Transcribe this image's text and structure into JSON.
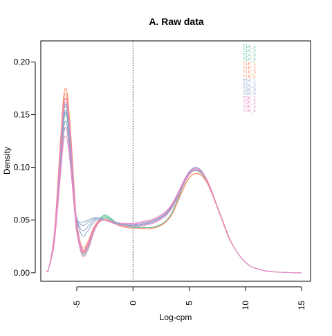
{
  "chart_data": {
    "type": "line",
    "title": "A. Raw data",
    "xlabel": "Log-cpm",
    "ylabel": "Density",
    "xlim": [
      -8.2,
      15.8
    ],
    "ylim": [
      -0.008,
      0.22
    ],
    "xticks": [
      {
        "value": -5,
        "label": "-5"
      },
      {
        "value": 0,
        "label": "0"
      },
      {
        "value": 5,
        "label": "5"
      },
      {
        "value": 10,
        "label": "10"
      },
      {
        "value": 15,
        "label": "15"
      }
    ],
    "yticks": [
      {
        "value": 0.0,
        "label": "0.00"
      },
      {
        "value": 0.05,
        "label": "0.05"
      },
      {
        "value": 0.1,
        "label": "0.10"
      },
      {
        "value": 0.15,
        "label": "0.15"
      },
      {
        "value": 0.2,
        "label": "0.20"
      }
    ],
    "vline": {
      "x": 0,
      "style": "dotted"
    },
    "grid": false,
    "legend_position": "top-right",
    "x": [
      -7.7,
      -7.5,
      -7.0,
      -6.5,
      -6.2,
      -6.0,
      -5.8,
      -5.5,
      -5.2,
      -5.0,
      -4.5,
      -4.0,
      -3.5,
      -3.0,
      -2.5,
      -2.0,
      -1.5,
      -1.0,
      -0.5,
      0.0,
      0.5,
      1.0,
      1.5,
      2.0,
      2.5,
      3.0,
      3.5,
      4.0,
      4.5,
      5.0,
      5.5,
      6.0,
      6.5,
      7.0,
      7.5,
      8.0,
      8.5,
      9.0,
      9.5,
      10.0,
      10.5,
      11.0,
      11.5,
      12.0,
      12.5,
      13.0,
      13.5,
      14.0,
      14.5,
      15.0
    ],
    "series": [
      {
        "name": "T1A_1",
        "color": "#66C2A5",
        "values": [
          0.002,
          0.004,
          0.03,
          0.09,
          0.128,
          0.138,
          0.13,
          0.1,
          0.062,
          0.042,
          0.02,
          0.026,
          0.04,
          0.05,
          0.053,
          0.05,
          0.047,
          0.046,
          0.045,
          0.044,
          0.043,
          0.043,
          0.043,
          0.044,
          0.046,
          0.05,
          0.058,
          0.07,
          0.083,
          0.093,
          0.097,
          0.095,
          0.088,
          0.076,
          0.062,
          0.048,
          0.034,
          0.024,
          0.016,
          0.01,
          0.006,
          0.004,
          0.0025,
          0.0015,
          0.001,
          0.0006,
          0.0004,
          0.0002,
          0.0001,
          0.0
        ]
      },
      {
        "name": "T1A_2",
        "color": "#66C2A5",
        "values": [
          0.002,
          0.004,
          0.032,
          0.098,
          0.14,
          0.15,
          0.142,
          0.108,
          0.066,
          0.044,
          0.018,
          0.022,
          0.038,
          0.05,
          0.055,
          0.052,
          0.048,
          0.046,
          0.045,
          0.044,
          0.043,
          0.043,
          0.043,
          0.044,
          0.046,
          0.05,
          0.058,
          0.07,
          0.083,
          0.093,
          0.097,
          0.095,
          0.088,
          0.076,
          0.062,
          0.048,
          0.034,
          0.024,
          0.016,
          0.01,
          0.006,
          0.004,
          0.0025,
          0.0015,
          0.001,
          0.0006,
          0.0004,
          0.0002,
          0.0001,
          0.0
        ]
      },
      {
        "name": "T1A_3",
        "color": "#66C2A5",
        "values": [
          0.002,
          0.004,
          0.034,
          0.104,
          0.148,
          0.158,
          0.15,
          0.114,
          0.07,
          0.046,
          0.02,
          0.024,
          0.04,
          0.051,
          0.054,
          0.051,
          0.047,
          0.045,
          0.044,
          0.043,
          0.043,
          0.043,
          0.043,
          0.044,
          0.046,
          0.05,
          0.058,
          0.07,
          0.083,
          0.093,
          0.097,
          0.095,
          0.088,
          0.076,
          0.062,
          0.048,
          0.034,
          0.024,
          0.016,
          0.01,
          0.006,
          0.004,
          0.0025,
          0.0015,
          0.001,
          0.0006,
          0.0004,
          0.0002,
          0.0001,
          0.0
        ]
      },
      {
        "name": "T1A_4",
        "color": "#66C2A5",
        "values": [
          0.002,
          0.004,
          0.031,
          0.094,
          0.134,
          0.144,
          0.136,
          0.104,
          0.064,
          0.043,
          0.019,
          0.024,
          0.039,
          0.049,
          0.052,
          0.05,
          0.047,
          0.046,
          0.045,
          0.044,
          0.043,
          0.043,
          0.043,
          0.044,
          0.046,
          0.05,
          0.058,
          0.07,
          0.083,
          0.093,
          0.097,
          0.095,
          0.088,
          0.076,
          0.062,
          0.048,
          0.034,
          0.024,
          0.016,
          0.01,
          0.006,
          0.004,
          0.0025,
          0.0015,
          0.001,
          0.0006,
          0.0004,
          0.0002,
          0.0001,
          0.0
        ]
      },
      {
        "name": "T1K_1",
        "color": "#FC8D62",
        "values": [
          0.002,
          0.004,
          0.036,
          0.11,
          0.155,
          0.165,
          0.157,
          0.12,
          0.072,
          0.047,
          0.022,
          0.028,
          0.042,
          0.05,
          0.05,
          0.048,
          0.046,
          0.044,
          0.043,
          0.042,
          0.042,
          0.042,
          0.042,
          0.043,
          0.045,
          0.049,
          0.056,
          0.068,
          0.08,
          0.09,
          0.094,
          0.093,
          0.087,
          0.076,
          0.062,
          0.048,
          0.034,
          0.024,
          0.016,
          0.01,
          0.006,
          0.004,
          0.0025,
          0.0015,
          0.001,
          0.0006,
          0.0004,
          0.0002,
          0.0001,
          0.0
        ]
      },
      {
        "name": "T1K_2",
        "color": "#FC8D62",
        "values": [
          0.002,
          0.004,
          0.034,
          0.106,
          0.15,
          0.16,
          0.152,
          0.116,
          0.07,
          0.046,
          0.024,
          0.03,
          0.043,
          0.05,
          0.05,
          0.048,
          0.046,
          0.044,
          0.043,
          0.042,
          0.042,
          0.042,
          0.042,
          0.043,
          0.045,
          0.049,
          0.056,
          0.068,
          0.08,
          0.09,
          0.094,
          0.093,
          0.087,
          0.076,
          0.062,
          0.048,
          0.034,
          0.024,
          0.016,
          0.01,
          0.006,
          0.004,
          0.0025,
          0.0015,
          0.001,
          0.0006,
          0.0004,
          0.0002,
          0.0001,
          0.0
        ]
      },
      {
        "name": "T1K_3",
        "color": "#FC8D62",
        "values": [
          0.002,
          0.004,
          0.037,
          0.114,
          0.16,
          0.17,
          0.162,
          0.124,
          0.074,
          0.048,
          0.022,
          0.027,
          0.041,
          0.049,
          0.05,
          0.048,
          0.046,
          0.044,
          0.043,
          0.042,
          0.042,
          0.042,
          0.042,
          0.043,
          0.045,
          0.049,
          0.056,
          0.068,
          0.08,
          0.09,
          0.094,
          0.093,
          0.087,
          0.076,
          0.062,
          0.048,
          0.034,
          0.024,
          0.016,
          0.01,
          0.006,
          0.004,
          0.0025,
          0.0015,
          0.001,
          0.0006,
          0.0004,
          0.0002,
          0.0001,
          0.0
        ]
      },
      {
        "name": "T1K_4",
        "color": "#FC8D62",
        "values": [
          0.002,
          0.004,
          0.038,
          0.118,
          0.164,
          0.175,
          0.166,
          0.127,
          0.076,
          0.049,
          0.021,
          0.026,
          0.04,
          0.049,
          0.051,
          0.049,
          0.046,
          0.044,
          0.043,
          0.042,
          0.042,
          0.042,
          0.042,
          0.043,
          0.045,
          0.049,
          0.056,
          0.068,
          0.08,
          0.09,
          0.094,
          0.093,
          0.087,
          0.076,
          0.062,
          0.048,
          0.034,
          0.024,
          0.016,
          0.01,
          0.006,
          0.004,
          0.0025,
          0.0015,
          0.001,
          0.0006,
          0.0004,
          0.0002,
          0.0001,
          0.0
        ]
      },
      {
        "name": "T2A_1",
        "color": "#8DA0CB",
        "values": [
          0.002,
          0.004,
          0.033,
          0.1,
          0.142,
          0.152,
          0.144,
          0.11,
          0.068,
          0.052,
          0.045,
          0.048,
          0.051,
          0.052,
          0.05,
          0.048,
          0.047,
          0.046,
          0.046,
          0.046,
          0.046,
          0.047,
          0.048,
          0.05,
          0.053,
          0.057,
          0.064,
          0.074,
          0.086,
          0.095,
          0.099,
          0.097,
          0.089,
          0.077,
          0.063,
          0.049,
          0.035,
          0.024,
          0.016,
          0.01,
          0.006,
          0.004,
          0.0025,
          0.0015,
          0.001,
          0.0006,
          0.0004,
          0.0002,
          0.0001,
          0.0
        ]
      },
      {
        "name": "T2A_2",
        "color": "#8DA0CB",
        "values": [
          0.002,
          0.004,
          0.035,
          0.106,
          0.15,
          0.16,
          0.152,
          0.116,
          0.07,
          0.05,
          0.035,
          0.04,
          0.048,
          0.051,
          0.05,
          0.048,
          0.047,
          0.046,
          0.045,
          0.045,
          0.045,
          0.046,
          0.047,
          0.049,
          0.052,
          0.056,
          0.063,
          0.073,
          0.085,
          0.094,
          0.098,
          0.096,
          0.089,
          0.077,
          0.063,
          0.049,
          0.035,
          0.024,
          0.016,
          0.01,
          0.006,
          0.004,
          0.0025,
          0.0015,
          0.001,
          0.0006,
          0.0004,
          0.0002,
          0.0001,
          0.0
        ]
      },
      {
        "name": "T2A_3",
        "color": "#8DA0CB",
        "values": [
          0.002,
          0.004,
          0.031,
          0.094,
          0.134,
          0.144,
          0.136,
          0.104,
          0.064,
          0.05,
          0.048,
          0.05,
          0.052,
          0.052,
          0.05,
          0.048,
          0.047,
          0.046,
          0.046,
          0.046,
          0.047,
          0.048,
          0.049,
          0.051,
          0.054,
          0.058,
          0.065,
          0.075,
          0.087,
          0.096,
          0.1,
          0.098,
          0.09,
          0.078,
          0.063,
          0.049,
          0.035,
          0.024,
          0.016,
          0.01,
          0.006,
          0.004,
          0.0025,
          0.0015,
          0.001,
          0.0006,
          0.0004,
          0.0002,
          0.0001,
          0.0
        ]
      },
      {
        "name": "T2A_4",
        "color": "#8DA0CB",
        "values": [
          0.002,
          0.004,
          0.034,
          0.102,
          0.144,
          0.154,
          0.146,
          0.112,
          0.069,
          0.051,
          0.04,
          0.044,
          0.05,
          0.052,
          0.05,
          0.048,
          0.047,
          0.046,
          0.046,
          0.045,
          0.046,
          0.046,
          0.048,
          0.05,
          0.053,
          0.057,
          0.064,
          0.074,
          0.086,
          0.095,
          0.099,
          0.097,
          0.089,
          0.077,
          0.063,
          0.049,
          0.035,
          0.024,
          0.016,
          0.01,
          0.006,
          0.004,
          0.0025,
          0.0015,
          0.001,
          0.0006,
          0.0004,
          0.0002,
          0.0001,
          0.0
        ]
      },
      {
        "name": "T2K_1",
        "color": "#E78AC3",
        "values": [
          0.002,
          0.004,
          0.028,
          0.086,
          0.122,
          0.13,
          0.123,
          0.094,
          0.058,
          0.038,
          0.016,
          0.022,
          0.038,
          0.048,
          0.05,
          0.049,
          0.048,
          0.047,
          0.047,
          0.047,
          0.048,
          0.049,
          0.05,
          0.052,
          0.055,
          0.059,
          0.066,
          0.076,
          0.087,
          0.095,
          0.099,
          0.097,
          0.09,
          0.078,
          0.063,
          0.049,
          0.035,
          0.024,
          0.016,
          0.01,
          0.006,
          0.004,
          0.0025,
          0.0015,
          0.001,
          0.0006,
          0.0004,
          0.0002,
          0.0001,
          0.0
        ]
      },
      {
        "name": "T2K_2",
        "color": "#E78AC3",
        "values": [
          0.002,
          0.004,
          0.03,
          0.092,
          0.13,
          0.138,
          0.131,
          0.1,
          0.062,
          0.04,
          0.019,
          0.025,
          0.04,
          0.049,
          0.05,
          0.049,
          0.048,
          0.047,
          0.046,
          0.046,
          0.047,
          0.048,
          0.049,
          0.051,
          0.054,
          0.058,
          0.065,
          0.075,
          0.086,
          0.095,
          0.099,
          0.097,
          0.09,
          0.078,
          0.063,
          0.049,
          0.035,
          0.024,
          0.016,
          0.01,
          0.006,
          0.004,
          0.0025,
          0.0015,
          0.001,
          0.0006,
          0.0004,
          0.0002,
          0.0001,
          0.0
        ]
      },
      {
        "name": "T2K_3",
        "color": "#E78AC3",
        "values": [
          0.002,
          0.004,
          0.036,
          0.112,
          0.156,
          0.166,
          0.158,
          0.12,
          0.073,
          0.047,
          0.022,
          0.028,
          0.042,
          0.049,
          0.05,
          0.048,
          0.046,
          0.045,
          0.044,
          0.044,
          0.044,
          0.045,
          0.046,
          0.048,
          0.051,
          0.055,
          0.062,
          0.072,
          0.084,
          0.093,
          0.097,
          0.096,
          0.089,
          0.077,
          0.063,
          0.049,
          0.035,
          0.024,
          0.016,
          0.01,
          0.006,
          0.004,
          0.0025,
          0.0015,
          0.001,
          0.0006,
          0.0004,
          0.0002,
          0.0001,
          0.0
        ]
      },
      {
        "name": "T2K_4",
        "color": "#E78AC3",
        "values": [
          0.002,
          0.004,
          0.035,
          0.108,
          0.152,
          0.162,
          0.154,
          0.118,
          0.071,
          0.046,
          0.02,
          0.026,
          0.041,
          0.049,
          0.05,
          0.048,
          0.046,
          0.045,
          0.044,
          0.044,
          0.044,
          0.045,
          0.046,
          0.048,
          0.051,
          0.055,
          0.062,
          0.072,
          0.084,
          0.093,
          0.097,
          0.096,
          0.089,
          0.077,
          0.063,
          0.049,
          0.035,
          0.024,
          0.016,
          0.01,
          0.006,
          0.004,
          0.0025,
          0.0015,
          0.001,
          0.0006,
          0.0004,
          0.0002,
          0.0001,
          0.0
        ]
      }
    ]
  }
}
